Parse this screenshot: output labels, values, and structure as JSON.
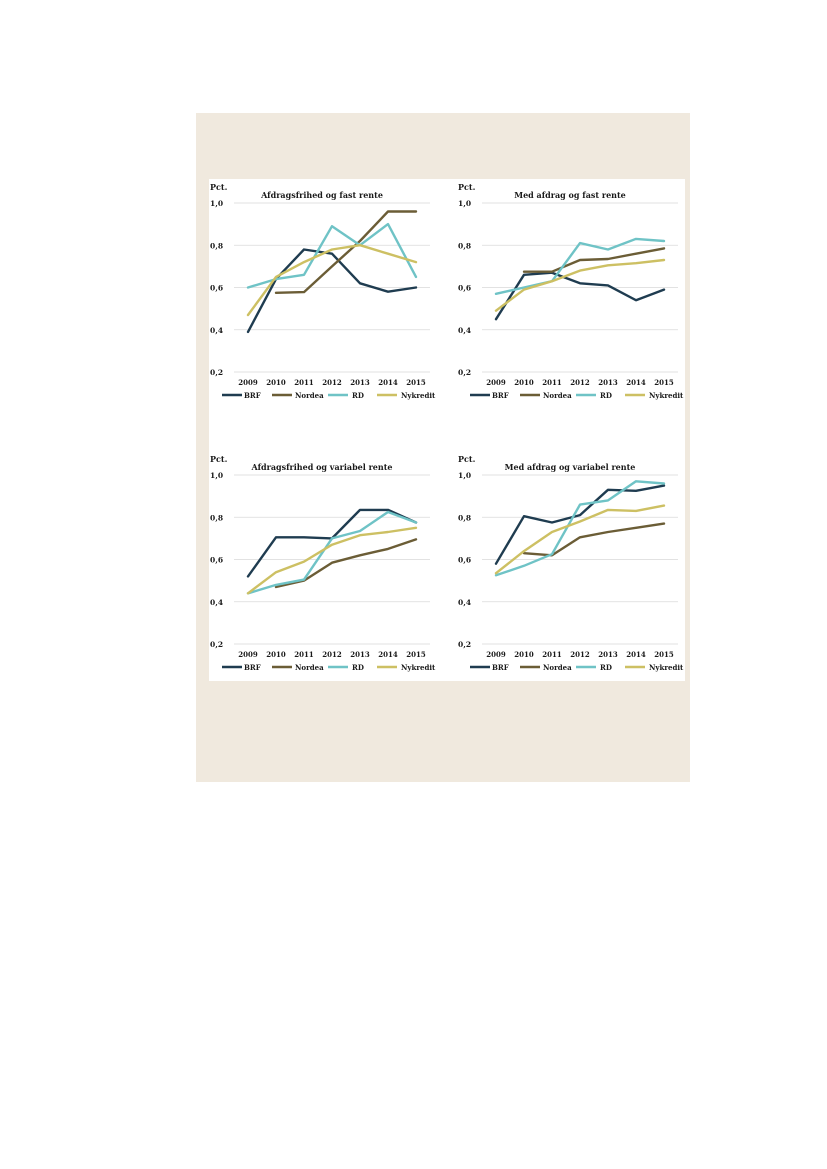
{
  "colors": {
    "panel_background": "#f0e9de",
    "BRF": "#1f3c50",
    "Nordea": "#6b5d36",
    "RD": "#6fc3c6",
    "Nykredit": "#cdc063",
    "gridline": "#d9d9d9"
  },
  "chart_data": [
    {
      "type": "line",
      "title": "Afdragsfrihed og fast rente",
      "ylabel": "Pct.",
      "ylim": [
        0.2,
        1.0
      ],
      "yticks": [
        0.2,
        0.4,
        0.6,
        0.8,
        1.0
      ],
      "ytick_labels": [
        "0,2",
        "0,4",
        "0,6",
        "0,8",
        "1,0"
      ],
      "categories": [
        "2009",
        "2010",
        "2011",
        "2012",
        "2013",
        "2014",
        "2015"
      ],
      "grid": true,
      "legend": "bottom",
      "series": [
        {
          "name": "BRF",
          "values": [
            0.39,
            0.64,
            0.78,
            0.76,
            0.62,
            0.58,
            0.6
          ]
        },
        {
          "name": "Nordea",
          "values": [
            null,
            0.575,
            0.578,
            0.7,
            0.82,
            0.96,
            0.96
          ]
        },
        {
          "name": "RD",
          "values": [
            0.6,
            0.64,
            0.66,
            0.89,
            0.8,
            0.9,
            0.65
          ]
        },
        {
          "name": "Nykredit",
          "values": [
            0.47,
            0.65,
            0.72,
            0.78,
            0.8,
            0.76,
            0.72
          ]
        }
      ]
    },
    {
      "type": "line",
      "title": "Med afdrag og fast rente",
      "ylabel": "Pct.",
      "ylim": [
        0.2,
        1.0
      ],
      "yticks": [
        0.2,
        0.4,
        0.6,
        0.8,
        1.0
      ],
      "ytick_labels": [
        "0,2",
        "0,4",
        "0,6",
        "0,8",
        "1,0"
      ],
      "categories": [
        "2009",
        "2010",
        "2011",
        "2012",
        "2013",
        "2014",
        "2015"
      ],
      "grid": true,
      "legend": "bottom",
      "series": [
        {
          "name": "BRF",
          "values": [
            0.45,
            0.66,
            0.67,
            0.62,
            0.61,
            0.54,
            0.59
          ]
        },
        {
          "name": "Nordea",
          "values": [
            null,
            0.675,
            0.675,
            0.73,
            0.735,
            0.76,
            0.785
          ]
        },
        {
          "name": "RD",
          "values": [
            0.57,
            0.6,
            0.63,
            0.81,
            0.78,
            0.83,
            0.82
          ]
        },
        {
          "name": "Nykredit",
          "values": [
            0.49,
            0.59,
            0.63,
            0.68,
            0.705,
            0.715,
            0.73
          ]
        }
      ]
    },
    {
      "type": "line",
      "title": "Afdragsfrihed og variabel rente",
      "ylabel": "Pct.",
      "ylim": [
        0.2,
        1.0
      ],
      "yticks": [
        0.2,
        0.4,
        0.6,
        0.8,
        1.0
      ],
      "ytick_labels": [
        "0,2",
        "0,4",
        "0,6",
        "0,8",
        "1,0"
      ],
      "categories": [
        "2009",
        "2010",
        "2011",
        "2012",
        "2013",
        "2014",
        "2015"
      ],
      "grid": true,
      "legend": "bottom",
      "series": [
        {
          "name": "BRF",
          "values": [
            0.52,
            0.705,
            0.705,
            0.7,
            0.835,
            0.835,
            0.775
          ]
        },
        {
          "name": "Nordea",
          "values": [
            null,
            0.47,
            0.5,
            0.585,
            0.62,
            0.65,
            0.695
          ]
        },
        {
          "name": "RD",
          "values": [
            0.44,
            0.48,
            0.505,
            0.7,
            0.735,
            0.825,
            0.775
          ]
        },
        {
          "name": "Nykredit",
          "values": [
            0.44,
            0.54,
            0.59,
            0.67,
            0.715,
            0.73,
            0.75
          ]
        }
      ]
    },
    {
      "type": "line",
      "title": "Med afdrag og variabel rente",
      "ylabel": "Pct.",
      "ylim": [
        0.2,
        1.0
      ],
      "yticks": [
        0.2,
        0.4,
        0.6,
        0.8,
        1.0
      ],
      "ytick_labels": [
        "0,2",
        "0,4",
        "0,6",
        "0,8",
        "1,0"
      ],
      "categories": [
        "2009",
        "2010",
        "2011",
        "2012",
        "2013",
        "2014",
        "2015"
      ],
      "grid": true,
      "legend": "bottom",
      "series": [
        {
          "name": "BRF",
          "values": [
            0.58,
            0.805,
            0.775,
            0.81,
            0.93,
            0.925,
            0.95
          ]
        },
        {
          "name": "Nordea",
          "values": [
            null,
            0.63,
            0.62,
            0.705,
            0.73,
            0.75,
            0.77
          ]
        },
        {
          "name": "RD",
          "values": [
            0.525,
            0.57,
            0.625,
            0.86,
            0.88,
            0.97,
            0.96
          ]
        },
        {
          "name": "Nykredit",
          "values": [
            0.535,
            0.64,
            0.73,
            0.78,
            0.835,
            0.83,
            0.855
          ]
        }
      ]
    }
  ]
}
